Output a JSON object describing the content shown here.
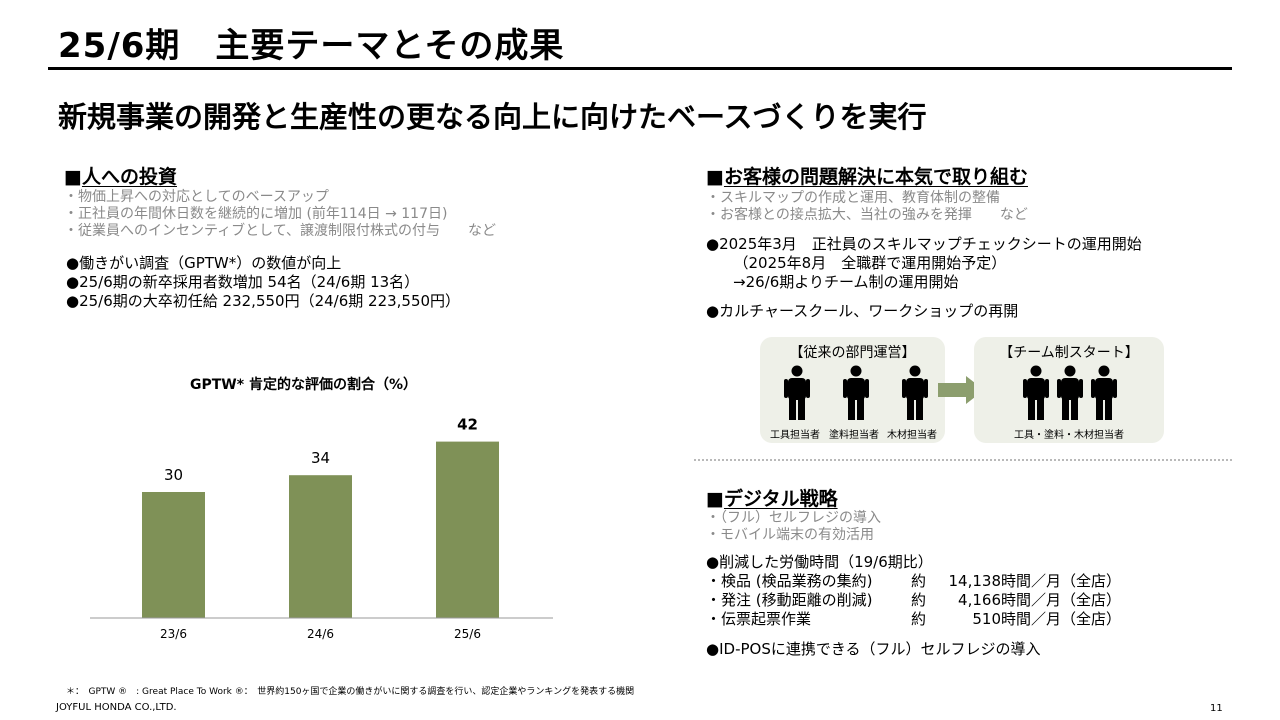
{
  "header": {
    "title": "25/6期　主要テーマとその成果",
    "subtitle": "新規事業の開発と生産性の更なる向上に向けたベースづくりを実行"
  },
  "left": {
    "head_marker": "■",
    "head": "人への投資",
    "gray_items": [
      "・物価上昇への対応としてのベースアップ",
      "・正社員の年間休日数を継続的に増加 (前年114日 → 117日)",
      "・従業員へのインセンティブとして、譲渡制限付株式の付与　　など"
    ],
    "bullets": [
      "●働きがい調査（GPTW*）の数値が向上",
      "●25/6期の新卒採用者数増加 54名（24/6期 13名）",
      "●25/6期の大卒初任給 232,550円（24/6期 223,550円）"
    ]
  },
  "chart_data": {
    "type": "bar",
    "title": "GPTW* 肯定的な評価の割合（%）",
    "categories": [
      "23/6",
      "24/6",
      "25/6"
    ],
    "values": [
      30,
      34,
      42
    ],
    "value_labels": [
      "30",
      "34",
      "42"
    ],
    "bold_label_index": 2,
    "bar_color": "#7f9157",
    "ylim": [
      0,
      50
    ],
    "grid": false
  },
  "right": {
    "head_marker": "■",
    "head": "お客様の問題解決に本気で取り組む",
    "gray_items": [
      "・スキルマップの作成と運用、教育体制の整備",
      "・お客様との接点拡大、当社の強みを発揮　　など"
    ],
    "bullet1": [
      "●2025年3月　正社員のスキルマップチェックシートの運用開始",
      "　（2025年8月　全職群で運用開始予定）",
      "　→26/6期よりチーム制の運用開始"
    ],
    "bullet2": "●カルチャースクール、ワークショップの再開",
    "diagram": {
      "left_title": "【従来の部門運営】",
      "left_captions": [
        "工具担当者",
        "塗料担当者",
        "木材担当者"
      ],
      "right_title": "【チーム制スタート】",
      "right_caption": "工具・塗料・木材担当者",
      "person_color": "#000000",
      "arrow_color": "#8c9e6e",
      "box_color": "#eef0e8"
    }
  },
  "digital": {
    "head_marker": "■",
    "head": "デジタル戦略",
    "gray_items": [
      "・（フル）セルフレジの導入",
      "・モバイル端末の有効活用"
    ],
    "reduction_head": "●削減した労働時間（19/6期比）",
    "rows": [
      {
        "label": "・検品 (検品業務の集約)",
        "approx": "約",
        "num": "14,138",
        "unit": "時間／月（全店）"
      },
      {
        "label": "・発注 (移動距離の削減)",
        "approx": "約",
        "num": "4,166",
        "unit": "時間／月（全店）"
      },
      {
        "label": "・伝票起票作業",
        "approx": "約",
        "num": "510",
        "unit": "時間／月（全店）"
      }
    ],
    "last_bullet": "●ID-POSに連携できる（フル）セルフレジの導入"
  },
  "footer": {
    "footnote": "＊：　GPTW ®　: Great Place To Work ®：　世界約150ヶ国で企業の働きがいに関する調査を行い、認定企業やランキングを発表する機関",
    "company": "JOYFUL HONDA CO.,LTD.",
    "page": "11"
  }
}
